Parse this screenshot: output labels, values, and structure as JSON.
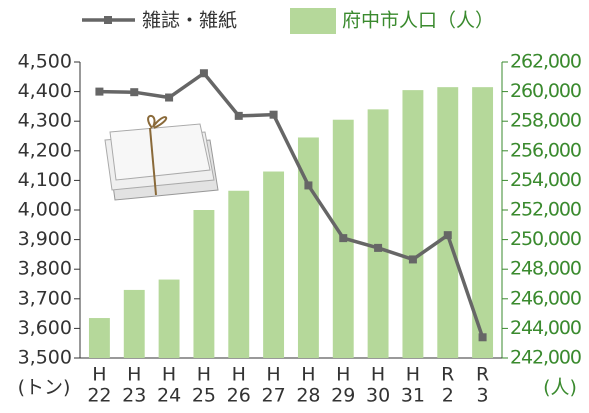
{
  "chart_data": {
    "type": "bar_line",
    "categories": [
      [
        "H",
        "22"
      ],
      [
        "H",
        "23"
      ],
      [
        "H",
        "24"
      ],
      [
        "H",
        "25"
      ],
      [
        "H",
        "26"
      ],
      [
        "H",
        "27"
      ],
      [
        "H",
        "28"
      ],
      [
        "H",
        "29"
      ],
      [
        "H",
        "30"
      ],
      [
        "H",
        "31"
      ],
      [
        "R",
        "2"
      ],
      [
        "R",
        "3"
      ]
    ],
    "series": [
      {
        "name": "府中市人口（人）",
        "type": "bar",
        "axis": "y2",
        "color": "#b5d89a",
        "values": [
          244700,
          246600,
          247300,
          252000,
          253300,
          254600,
          256900,
          258100,
          258800,
          260100,
          260300,
          260300
        ]
      },
      {
        "name": "雑誌・雑紙",
        "type": "line",
        "axis": "y",
        "color": "#666666",
        "values": [
          4400,
          4398,
          4380,
          4462,
          4318,
          4322,
          4083,
          3905,
          3872,
          3833,
          3915,
          3570
        ]
      }
    ],
    "y_unit": "(トン)",
    "y2_unit": "(人)",
    "ylim": [
      3500,
      4500
    ],
    "yticks": [
      {
        "value": 3500,
        "label": "3,500"
      },
      {
        "value": 3600,
        "label": "3,600"
      },
      {
        "value": 3700,
        "label": "3,700"
      },
      {
        "value": 3800,
        "label": "3,800"
      },
      {
        "value": 3900,
        "label": "3,900"
      },
      {
        "value": 4000,
        "label": "4,000"
      },
      {
        "value": 4100,
        "label": "4,100"
      },
      {
        "value": 4200,
        "label": "4,200"
      },
      {
        "value": 4300,
        "label": "4,300"
      },
      {
        "value": 4400,
        "label": "4,400"
      },
      {
        "value": 4500,
        "label": "4,500"
      }
    ],
    "y2lim": [
      242000,
      262000
    ],
    "y2ticks": [
      {
        "value": 242000,
        "label": "242,000"
      },
      {
        "value": 244000,
        "label": "244,000"
      },
      {
        "value": 246000,
        "label": "246,000"
      },
      {
        "value": 248000,
        "label": "248,000"
      },
      {
        "value": 250000,
        "label": "250,000"
      },
      {
        "value": 252000,
        "label": "252,000"
      },
      {
        "value": 254000,
        "label": "254,000"
      },
      {
        "value": 256000,
        "label": "256,000"
      },
      {
        "value": 258000,
        "label": "258,000"
      },
      {
        "value": 260000,
        "label": "260,000"
      },
      {
        "value": 262000,
        "label": "262,000"
      }
    ]
  }
}
